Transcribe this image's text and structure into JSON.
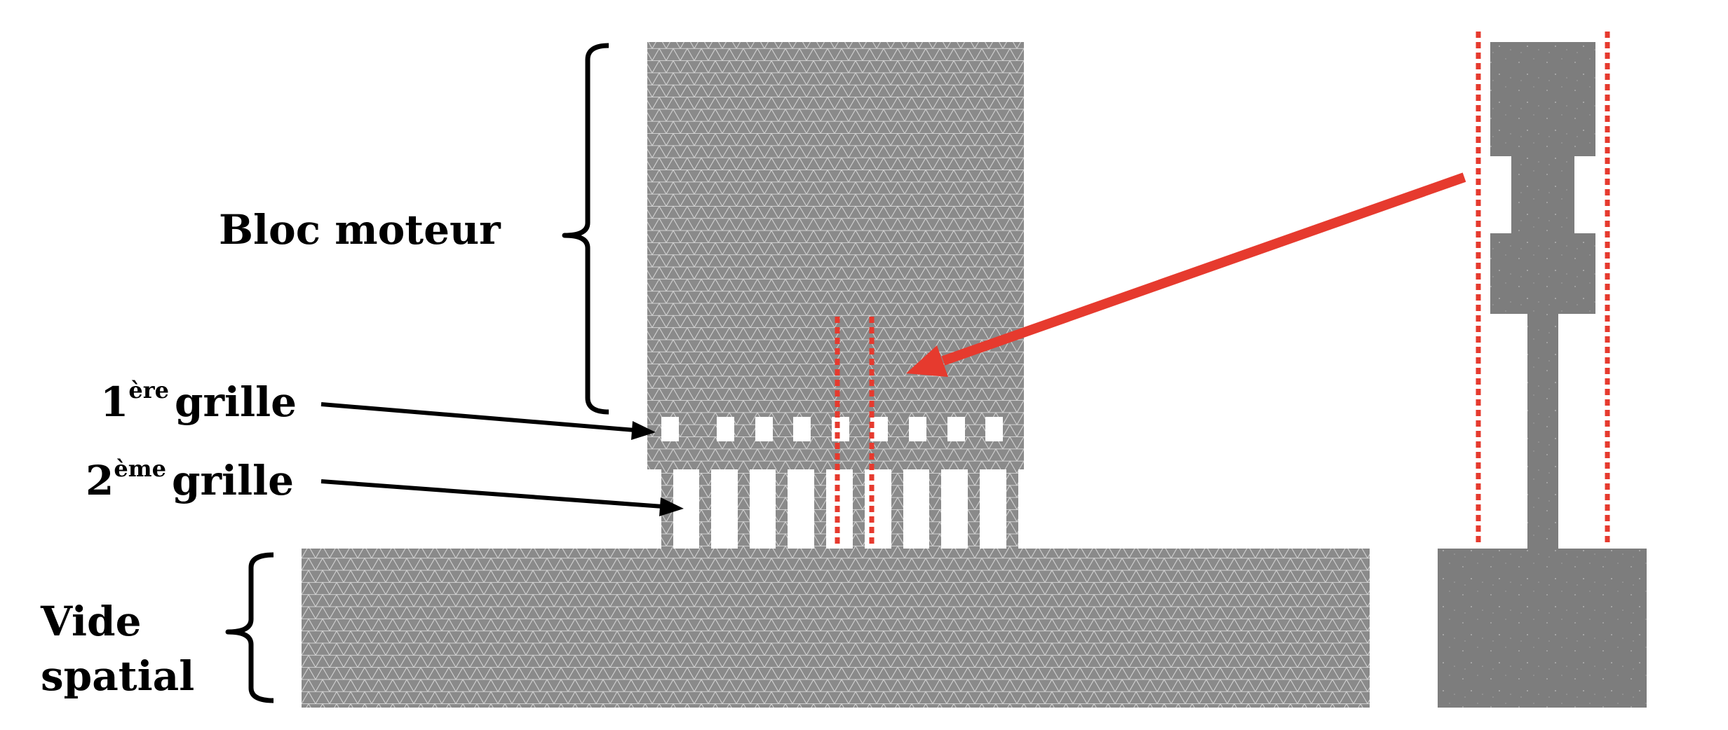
{
  "labels": {
    "bloc_moteur": "Bloc moteur",
    "grille1_num": "1",
    "grille1_sup": "ère",
    "grille1_word": "grille",
    "grille2_num": "2",
    "grille2_sup": "ème",
    "grille2_word": "grille",
    "vide_line1": "Vide",
    "vide_line2": "spatial"
  },
  "colors": {
    "mesh_fill": "#8a8a8a",
    "mesh_line": "#d2d2d2",
    "solid_fill": "#7d7d7d",
    "red": "#e63a2e",
    "black": "#000000"
  }
}
